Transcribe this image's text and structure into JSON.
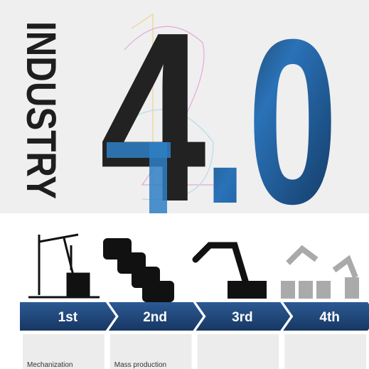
{
  "title": {
    "word": "INDUSTRY",
    "number": "4",
    "decimal": ".0"
  },
  "stages": [
    {
      "label": "1st",
      "description": "Mechanization"
    },
    {
      "label": "2nd",
      "description": "Mass production"
    },
    {
      "label": "3rd"
    },
    {
      "label": "4th"
    }
  ]
}
